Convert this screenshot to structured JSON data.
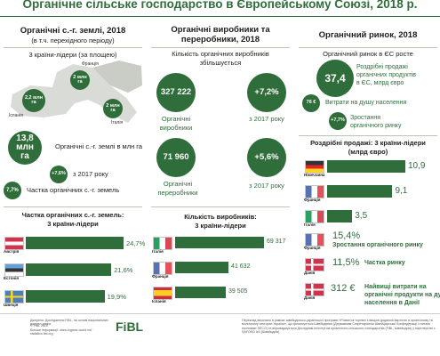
{
  "title": "Органічне сільське господарство в Європейському Союзі, 2018 р.",
  "land": {
    "header": "Органічні с.-г. землі, 2018",
    "subheader": "(в т.ч. перехідного періоду)",
    "leaders_title": "3 країни-лідери (за площею)",
    "map": [
      {
        "country": "Франція",
        "value": "2 млн га"
      },
      {
        "country": "Іспанія",
        "value": "2,2 млн га"
      },
      {
        "country": "Італія",
        "value": "2 млн га"
      }
    ],
    "total": {
      "value": "13,8 млн га",
      "label": "Органічні с.-г. землі в млн га"
    },
    "growth": {
      "value": "+7,6%",
      "label": "з 2017 року"
    },
    "share": {
      "value": "7,7%",
      "label": "Частка органічних с.-г. земель"
    },
    "bars": {
      "title_1": "Частка органічних  с.-г. земель:",
      "title_2": "3 країни-лідери",
      "countries": [
        "Австрія",
        "Естонія",
        "Швеція"
      ],
      "values": [
        24.7,
        21.6,
        19.9
      ],
      "value_labels": [
        "24,7%",
        "21,6%",
        "19,9%"
      ]
    }
  },
  "producers": {
    "header_1": "Органічні виробники та",
    "header_2": "переробники, 2018",
    "intro_1": "Кількість органічних виробників",
    "intro_2": "збільшується",
    "producers": {
      "value": "327 222",
      "label_1": "Органічні",
      "label_2": "виробники"
    },
    "producers_growth": {
      "value": "+7,2%",
      "label": "з 2017 року"
    },
    "processors": {
      "value": "71 960",
      "label_1": "Органічні",
      "label_2": "переробники"
    },
    "processors_growth": {
      "value": "+5,6%",
      "label": "з 2017 року"
    },
    "bars": {
      "title_1": "Кількість виробників:",
      "title_2": "3 країни-лідери",
      "countries": [
        "Італія",
        "Франція",
        "Іспанія"
      ],
      "values": [
        69317,
        41632,
        39505
      ],
      "value_labels": [
        "69 317",
        "41 632",
        "39 505"
      ]
    }
  },
  "market": {
    "header": "Органічний ринок, 2018",
    "intro": "Органічний ринок в ЄС росте",
    "retail": {
      "value": "37,4",
      "label_1": "Роздрібні продажі",
      "label_2": "органічних продуктів",
      "label_3": "в ЄС, млрд євро"
    },
    "per_capita": {
      "value": "76 €",
      "label": "Витрати на душу населення"
    },
    "growth": {
      "value": "+7,7%",
      "label_1": "Зростання",
      "label_2": "органічного ринку"
    },
    "bars": {
      "title_1": "Роздрібні продажі: 3 країни-лідери",
      "title_2": "(млрд євро)",
      "countries": [
        "Німеччина",
        "Франція",
        "Італія"
      ],
      "values": [
        10.9,
        9.1,
        3.5
      ],
      "value_labels": [
        "10,9",
        "9,1",
        "3,5"
      ]
    },
    "facts": [
      {
        "value": "15,4%",
        "label_1": "Зростання органічного ринку",
        "country": "Франція"
      },
      {
        "value": "11,5%",
        "label_1": "Частка ринку",
        "country": "Данія"
      },
      {
        "value": "312 €",
        "label_1": "Найвищі витрати на",
        "label_2": "органічні продукти на душу",
        "label_3": "населення в Данії",
        "country": "Данія"
      }
    ]
  },
  "footer": {
    "source": "Джерело: Дослідження FiBL, на основі національних джерел даних",
    "copyright": "© FiBL 2020",
    "more": "Більше інформації: www.organic-world.net · statistics.fibl.org",
    "logo": "FiBL",
    "note": "Переклад виконано в рамках швейцарсько-української програми «Розвиток торгівлі з вищою доданою вартістю в органічному та молочному секторах України», що фінансується Швейцарією (Державним Секретаріатом Швейцарської Конфедерації з питань економіки SECO) та впроваджується Дослідним інститутом органічного сільського господарства (FiBL, Швейцарія) у партнерстві з SAFOSO AG (Швейцарія)"
  }
}
